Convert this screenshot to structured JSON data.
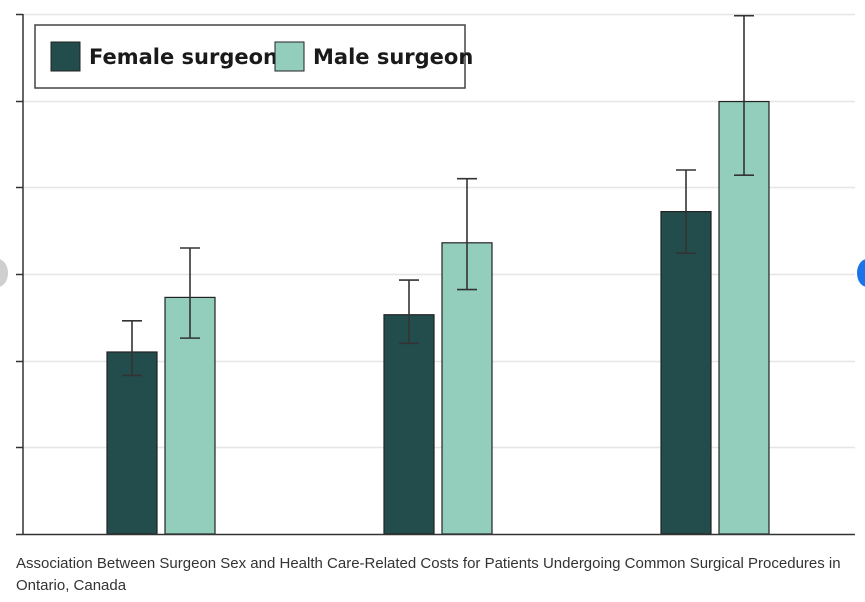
{
  "caption": "Association Between Surgeon Sex and Health Care-Related Costs for Patients Undergoing Common Surgical Procedures in Ontario, Canada",
  "colors": {
    "female": "#234d4d",
    "male": "#93cdbb",
    "grid": "#e6e6e6",
    "axis": "#333333",
    "outline": "#222222"
  },
  "chart_data": {
    "type": "bar",
    "title": "",
    "xlabel": "",
    "ylabel": "",
    "ylim": [
      0,
      6
    ],
    "grid": true,
    "legend_position": "top-left",
    "categories": [
      "",
      "",
      ""
    ],
    "series": [
      {
        "name": "Female surgeon",
        "values": [
          2.1,
          2.53,
          3.72
        ],
        "error_low": [
          1.83,
          2.2,
          3.24
        ],
        "error_high": [
          2.46,
          2.93,
          4.2
        ]
      },
      {
        "name": "Male surgeon",
        "values": [
          2.73,
          3.36,
          4.99
        ],
        "error_low": [
          2.26,
          2.82,
          4.14
        ],
        "error_high": [
          3.3,
          4.1,
          5.98
        ]
      }
    ]
  }
}
